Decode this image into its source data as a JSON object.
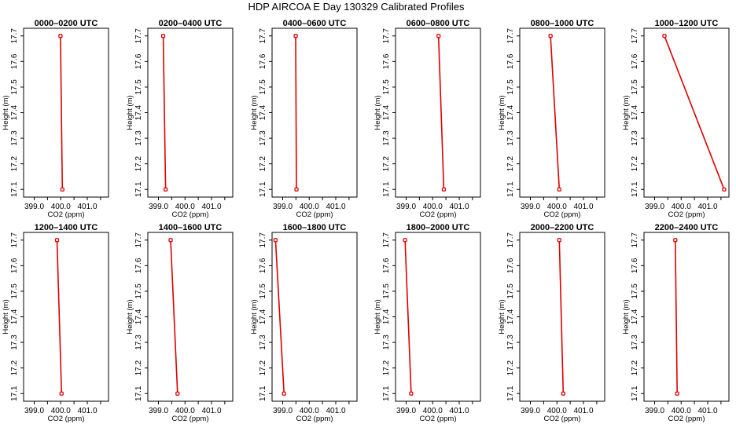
{
  "figure": {
    "title": "HDP AIRCOA E  Day 130329  Calibrated Profiles"
  },
  "chart_data": {
    "type": "line",
    "panel_count": 12,
    "xlabel": "CO2 (ppm)",
    "ylabel": "Height (m)",
    "xlim": [
      398.6,
      401.8
    ],
    "ylim": [
      17.07,
      17.73
    ],
    "x_ticks": [
      399.0,
      400.0,
      401.0
    ],
    "x_tick_labels": [
      "399.0",
      "400.0",
      "401.0"
    ],
    "x_minor_ticks": [
      398.5,
      399.5,
      400.5,
      401.5
    ],
    "y_ticks": [
      17.1,
      17.2,
      17.3,
      17.4,
      17.5,
      17.6,
      17.7
    ],
    "y_tick_labels": [
      "17.1",
      "17.2",
      "17.3",
      "17.4",
      "17.5",
      "17.6",
      "17.7"
    ],
    "grid": false,
    "line_color": "#dd0000",
    "marker_color": "#dd0000",
    "panels": [
      {
        "title": "0000–0200 UTC",
        "points": [
          {
            "co2": 400.06,
            "height": 17.1
          },
          {
            "co2": 399.99,
            "height": 17.7
          }
        ]
      },
      {
        "title": "0200–0400 UTC",
        "points": [
          {
            "co2": 399.27,
            "height": 17.1
          },
          {
            "co2": 399.18,
            "height": 17.7
          }
        ]
      },
      {
        "title": "0400–0600 UTC",
        "points": [
          {
            "co2": 399.52,
            "height": 17.1
          },
          {
            "co2": 399.49,
            "height": 17.7
          }
        ]
      },
      {
        "title": "0600–0800 UTC",
        "points": [
          {
            "co2": 400.42,
            "height": 17.1
          },
          {
            "co2": 400.22,
            "height": 17.7
          }
        ]
      },
      {
        "title": "0800–1000 UTC",
        "points": [
          {
            "co2": 400.09,
            "height": 17.1
          },
          {
            "co2": 399.76,
            "height": 17.7
          }
        ]
      },
      {
        "title": "1000–1200 UTC",
        "points": [
          {
            "co2": 401.62,
            "height": 17.1
          },
          {
            "co2": 399.37,
            "height": 17.7
          }
        ]
      },
      {
        "title": "1200–1400 UTC",
        "points": [
          {
            "co2": 400.03,
            "height": 17.1
          },
          {
            "co2": 399.86,
            "height": 17.7
          }
        ]
      },
      {
        "title": "1400–1600 UTC",
        "points": [
          {
            "co2": 399.72,
            "height": 17.1
          },
          {
            "co2": 399.46,
            "height": 17.7
          }
        ]
      },
      {
        "title": "1600–1800 UTC",
        "points": [
          {
            "co2": 399.05,
            "height": 17.1
          },
          {
            "co2": 398.73,
            "height": 17.7
          }
        ]
      },
      {
        "title": "1800–2000 UTC",
        "points": [
          {
            "co2": 399.19,
            "height": 17.1
          },
          {
            "co2": 398.96,
            "height": 17.7
          }
        ]
      },
      {
        "title": "2000–2200 UTC",
        "points": [
          {
            "co2": 400.24,
            "height": 17.1
          },
          {
            "co2": 400.09,
            "height": 17.7
          }
        ]
      },
      {
        "title": "2200–2400 UTC",
        "points": [
          {
            "co2": 399.85,
            "height": 17.1
          },
          {
            "co2": 399.78,
            "height": 17.7
          }
        ]
      }
    ]
  }
}
